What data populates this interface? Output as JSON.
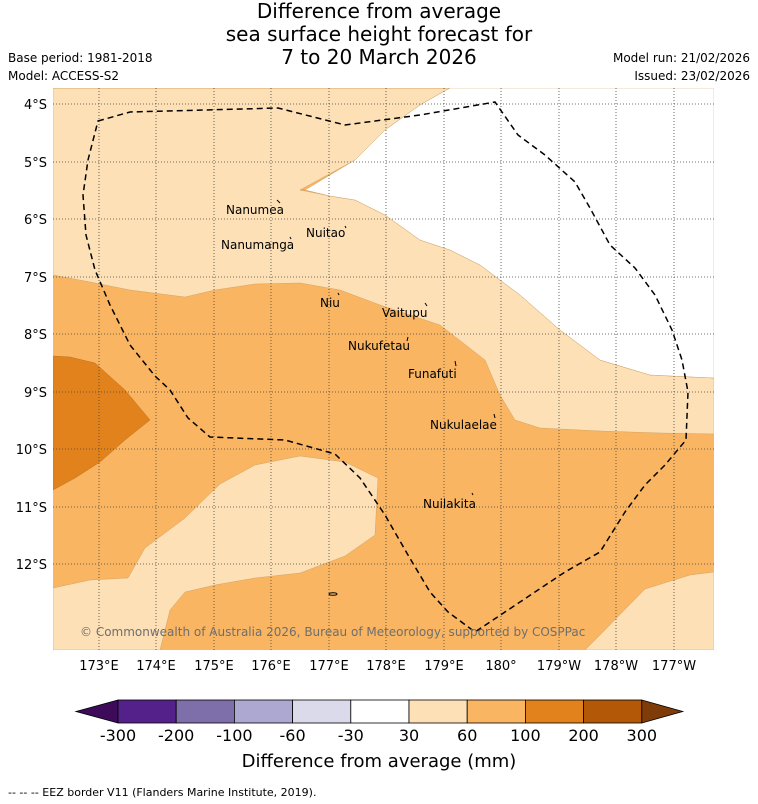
{
  "title": {
    "line1": "Difference from average",
    "line2": "sea surface height forecast for",
    "line3": "7 to 20 March 2026"
  },
  "meta": {
    "base_period": "Base period: 1981-2018",
    "model": "Model: ACCESS-S2",
    "model_run": "Model run: 21/02/2026",
    "issued": "Issued: 23/02/2026"
  },
  "map": {
    "lat_labels": [
      "4°S",
      "5°S",
      "6°S",
      "7°S",
      "8°S",
      "9°S",
      "10°S",
      "11°S",
      "12°S"
    ],
    "lon_labels": [
      "173°E",
      "174°E",
      "175°E",
      "176°E",
      "177°E",
      "178°E",
      "179°E",
      "180°",
      "179°W",
      "178°W",
      "177°W"
    ],
    "places": [
      {
        "name": "Nanumea"
      },
      {
        "name": "Nuitao"
      },
      {
        "name": "Nanumanga"
      },
      {
        "name": "Niu"
      },
      {
        "name": "Vaitupu"
      },
      {
        "name": "Nukufetau"
      },
      {
        "name": "Funafuti"
      },
      {
        "name": "Nukulaelae"
      },
      {
        "name": "Nuilakita"
      }
    ],
    "copyright": "© Commonwealth of Australia 2026, Bureau of Meteorology, supported by COSPPac",
    "fill_colors": {
      "c30_60": "#fde0b6",
      "c60_100": "#f9b562",
      "c100_200": "#e2821c"
    }
  },
  "colorbar": {
    "ticks": [
      "-300",
      "-200",
      "-100",
      "-60",
      "-30",
      "30",
      "60",
      "100",
      "200",
      "300"
    ],
    "colors": [
      "#3d0b5a",
      "#54218a",
      "#7e6fab",
      "#aca8d1",
      "#dadaeb",
      "#ffffff",
      "#fde0b6",
      "#f9b562",
      "#e2821c",
      "#b35806",
      "#7f3b08"
    ],
    "title": "Difference from average (mm)"
  },
  "footnote": "--  --  -- EEZ border V11 (Flanders Marine Institute, 2019)."
}
